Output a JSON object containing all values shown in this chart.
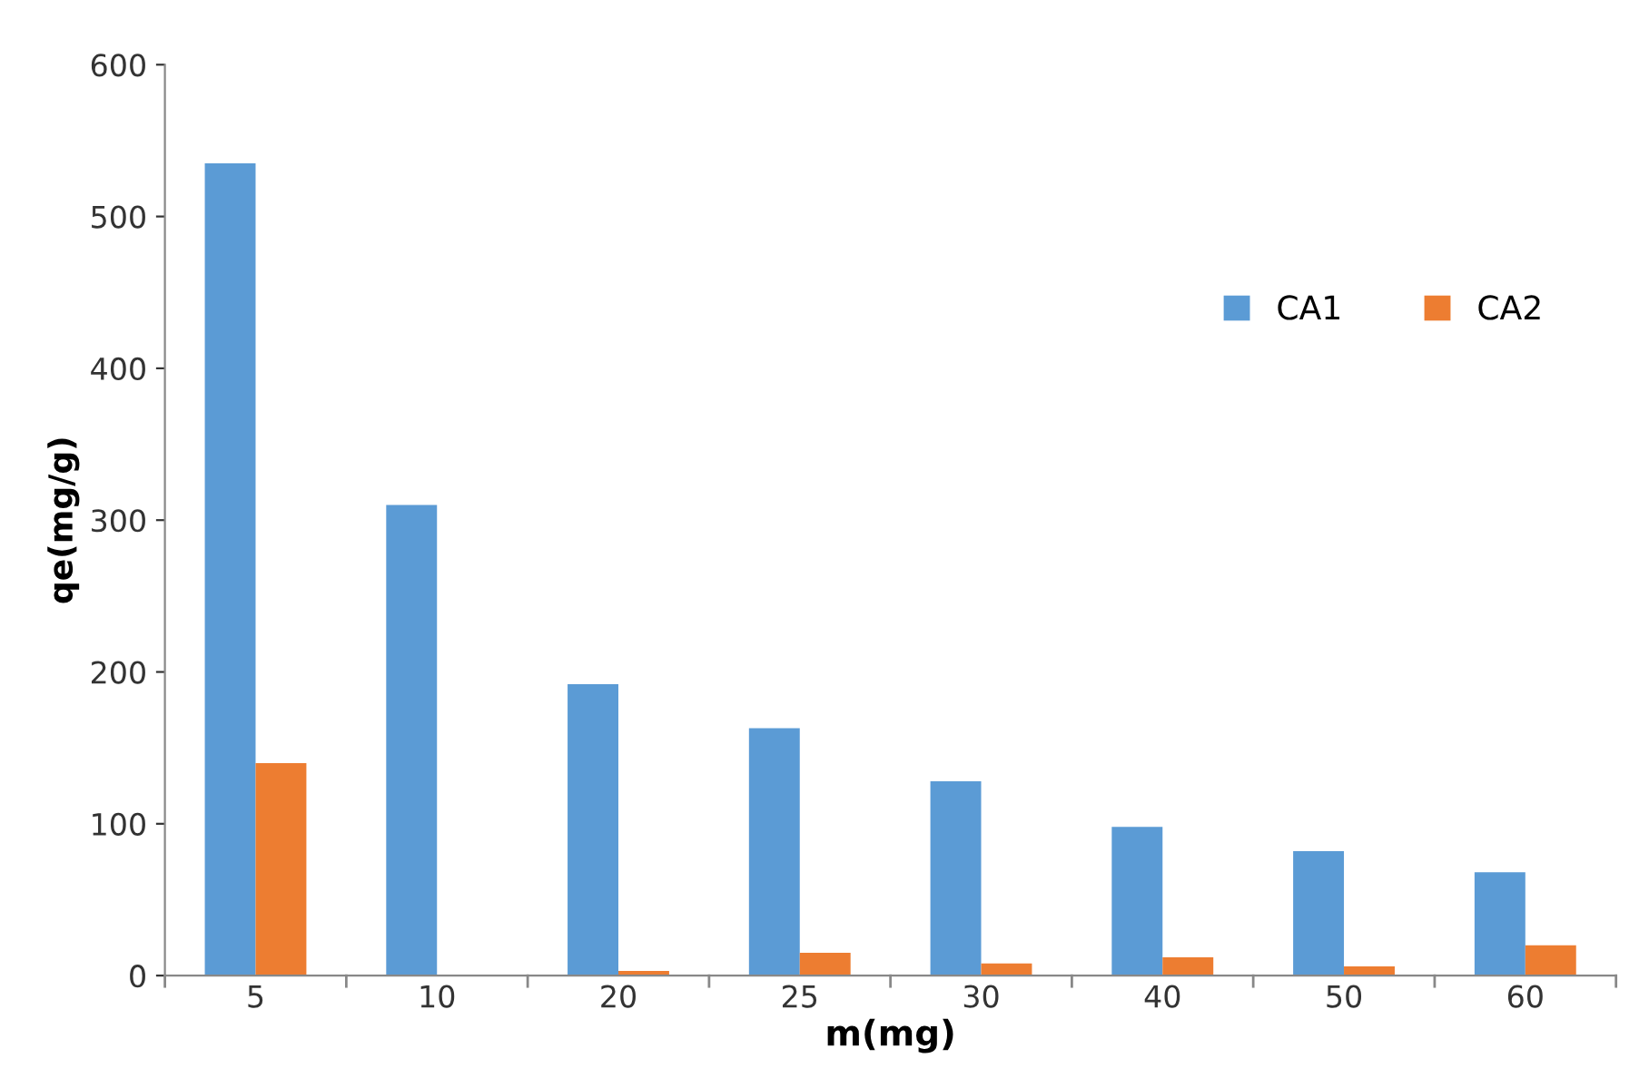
{
  "chart_data": {
    "type": "bar",
    "xlabel": "m(mg)",
    "ylabel": "qe(mg/g)",
    "categories": [
      "5",
      "10",
      "20",
      "25",
      "30",
      "40",
      "50",
      "60"
    ],
    "series": [
      {
        "name": "CA1",
        "color": "#5b9bd5",
        "values": [
          535,
          310,
          192,
          163,
          128,
          98,
          82,
          68
        ]
      },
      {
        "name": "CA2",
        "color": "#ed7d31",
        "values": [
          140,
          0,
          3,
          15,
          8,
          12,
          6,
          20
        ]
      }
    ],
    "ylim": [
      0,
      600
    ],
    "yticks": [
      0,
      100,
      200,
      300,
      400,
      500,
      600
    ],
    "grid": false,
    "legend": "top right"
  }
}
